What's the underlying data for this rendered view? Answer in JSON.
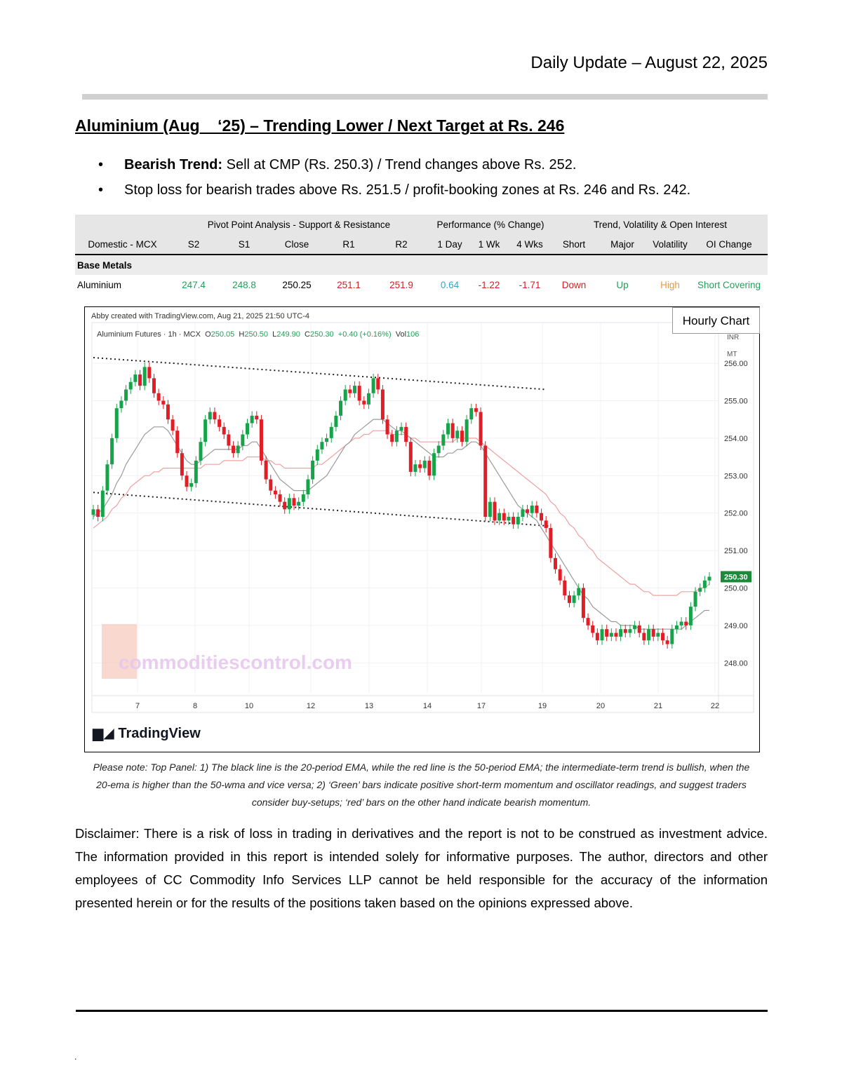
{
  "header": {
    "date_line": "Daily Update – August 22, 2025"
  },
  "title": "Aluminium (Aug    ‘25) – Trending Lower / Next Target at Rs. 246",
  "bullets": [
    {
      "bold": "Bearish Trend:",
      "text": " Sell at CMP (Rs. 250.3) / Trend changes above Rs. 252."
    },
    {
      "bold": "",
      "text": "Stop loss for bearish trades above Rs. 251.5 / profit-booking zones at Rs. 246 and Rs. 242."
    }
  ],
  "table": {
    "group_headers": [
      "Pivot Point Analysis - Support & Resistance",
      "Performance (% Change)",
      "Trend, Volatility & Open Interest"
    ],
    "columns": [
      "Domestic - MCX",
      "S2",
      "S1",
      "Close",
      "R1",
      "R2",
      "1 Day",
      "1 Wk",
      "4 Wks",
      "Short",
      "Major",
      "Volatility",
      "OI Change"
    ],
    "category": "Base Metals",
    "row": [
      "Aluminium",
      "247.4",
      "248.8",
      "250.25",
      "251.1",
      "251.9",
      "0.64",
      "-1.22",
      "-1.71",
      "Down",
      "Up",
      "High",
      "Short Covering"
    ],
    "colors": {
      "green": "#21a05a",
      "red": "#d11f24",
      "teal": "#2aa8c8",
      "orange": "#e39a4b"
    }
  },
  "chart_data": {
    "type": "candlestick",
    "caption": "Abby created with TradingView.com, Aug 21, 2025 21:50 UTC-4",
    "legend": {
      "symbol": "Aluminium Futures · 1h · MCX",
      "o_label": "O",
      "o": "250.05",
      "h_label": "H",
      "h": "250.50",
      "l_label": "L",
      "l": "249.90",
      "c_label": "C",
      "c": "250.30",
      "change": "+0.40 (+0.16%)",
      "vol_label": "Vol",
      "vol": "106"
    },
    "badge": "Hourly Chart",
    "axis_unit": [
      "INR",
      "MT"
    ],
    "y_ticks": [
      "256.00",
      "255.00",
      "254.00",
      "253.00",
      "252.00",
      "251.00",
      "250.00",
      "249.00",
      "248.00"
    ],
    "ylim": [
      247.2,
      256.6
    ],
    "x_ticks": [
      "7",
      "8",
      "10",
      "12",
      "13",
      "14",
      "17",
      "19",
      "20",
      "21",
      "22"
    ],
    "last_price": "250.30",
    "watermark": "commoditiescontrol.com",
    "brand": "TradingView",
    "closes": [
      252.1,
      251.9,
      252.6,
      253.3,
      254.0,
      254.8,
      255.0,
      255.3,
      255.5,
      255.7,
      255.4,
      255.9,
      255.6,
      255.2,
      255.0,
      254.9,
      254.5,
      254.2,
      253.6,
      253.0,
      252.7,
      252.8,
      253.4,
      253.9,
      254.5,
      254.7,
      254.5,
      254.3,
      254.1,
      253.8,
      253.6,
      253.8,
      254.1,
      254.4,
      254.6,
      254.5,
      253.4,
      252.9,
      252.6,
      252.5,
      252.3,
      252.1,
      252.4,
      252.2,
      252.3,
      252.5,
      252.9,
      253.4,
      253.7,
      253.9,
      254.0,
      254.3,
      254.6,
      255.0,
      255.3,
      255.2,
      255.4,
      255.0,
      254.9,
      255.2,
      255.6,
      255.3,
      254.5,
      254.1,
      253.9,
      254.2,
      254.3,
      253.9,
      253.1,
      253.3,
      253.2,
      253.4,
      253.0,
      253.6,
      253.8,
      254.1,
      254.4,
      254.0,
      254.2,
      253.9,
      254.5,
      254.8,
      254.7,
      253.8,
      251.9,
      252.3,
      251.8,
      252.0,
      251.8,
      251.9,
      251.7,
      251.9,
      252.1,
      252.0,
      252.2,
      252.0,
      251.8,
      251.6,
      250.8,
      250.5,
      250.2,
      249.8,
      249.6,
      249.8,
      250.0,
      249.2,
      249.0,
      248.8,
      248.6,
      248.9,
      248.7,
      248.8,
      248.7,
      248.9,
      248.8,
      248.9,
      249.0,
      248.8,
      248.6,
      248.9,
      248.7,
      248.8,
      248.6,
      248.5,
      248.9,
      249.0,
      249.1,
      249.0,
      249.5,
      249.9,
      250.0,
      250.2,
      250.3
    ],
    "ema20": [
      251.9,
      252.0,
      252.1,
      252.3,
      252.5,
      252.8,
      253.0,
      253.3,
      253.5,
      253.7,
      253.9,
      254.1,
      254.2,
      254.3,
      254.3,
      254.3,
      254.2,
      254.0,
      253.8,
      253.6,
      253.4,
      253.3,
      253.3,
      253.4,
      253.5,
      253.6,
      253.7,
      253.7,
      253.7,
      253.7,
      253.7,
      253.7,
      253.8,
      253.8,
      253.9,
      253.9,
      253.7,
      253.5,
      253.3,
      253.1,
      252.9,
      252.8,
      252.7,
      252.6,
      252.6,
      252.6,
      252.6,
      252.7,
      252.8,
      252.9,
      253.0,
      253.2,
      253.4,
      253.6,
      253.8,
      253.9,
      254.1,
      254.2,
      254.3,
      254.4,
      254.5,
      254.5,
      254.5,
      254.4,
      254.3,
      254.2,
      254.2,
      254.1,
      254.0,
      253.9,
      253.8,
      253.7,
      253.6,
      253.5,
      253.5,
      253.5,
      253.6,
      253.6,
      253.7,
      253.7,
      253.8,
      253.9,
      253.9,
      253.8,
      253.6,
      253.4,
      253.2,
      253.0,
      252.8,
      252.6,
      252.4,
      252.2,
      252.1,
      252.0,
      251.9,
      251.8,
      251.6,
      251.4,
      251.2,
      251.0,
      250.8,
      250.6,
      250.4,
      250.2,
      250.0,
      249.8,
      249.7,
      249.5,
      249.4,
      249.3,
      249.2,
      249.1,
      249.1,
      249.0,
      249.0,
      249.0,
      249.0,
      248.9,
      248.9,
      248.9,
      248.9,
      248.9,
      248.9,
      248.9,
      248.9,
      248.9,
      248.9,
      249.0,
      249.1,
      249.2,
      249.3,
      249.4,
      249.4
    ],
    "ema50": [
      251.6,
      251.7,
      251.8,
      251.9,
      252.1,
      252.2,
      252.4,
      252.5,
      252.7,
      252.8,
      252.9,
      253.0,
      253.0,
      253.1,
      253.1,
      253.2,
      253.2,
      253.2,
      253.2,
      253.2,
      253.2,
      253.2,
      253.2,
      253.2,
      253.3,
      253.3,
      253.3,
      253.3,
      253.4,
      253.4,
      253.4,
      253.4,
      253.4,
      253.5,
      253.5,
      253.5,
      253.5,
      253.4,
      253.4,
      253.3,
      253.3,
      253.2,
      253.2,
      253.2,
      253.2,
      253.2,
      253.2,
      253.2,
      253.3,
      253.3,
      253.4,
      253.5,
      253.6,
      253.7,
      253.8,
      253.9,
      254.0,
      254.0,
      254.1,
      254.1,
      254.2,
      254.2,
      254.2,
      254.2,
      254.1,
      254.1,
      254.1,
      254.1,
      254.0,
      254.0,
      253.9,
      253.9,
      253.9,
      253.9,
      253.9,
      253.9,
      253.9,
      253.9,
      254.0,
      254.0,
      254.0,
      254.0,
      254.0,
      253.9,
      253.8,
      253.7,
      253.6,
      253.5,
      253.4,
      253.3,
      253.2,
      253.1,
      253.0,
      252.9,
      252.8,
      252.7,
      252.6,
      252.5,
      252.3,
      252.2,
      252.0,
      251.9,
      251.7,
      251.6,
      251.4,
      251.3,
      251.1,
      251.0,
      250.8,
      250.7,
      250.6,
      250.5,
      250.4,
      250.3,
      250.2,
      250.1,
      250.1,
      250.0,
      249.9,
      249.9,
      249.8,
      249.8,
      249.8,
      249.8,
      249.8,
      249.8,
      249.9,
      249.9,
      249.9,
      249.9,
      250.0,
      250.0,
      250.1
    ],
    "trendlines": [
      {
        "from": [
          0,
          256.15
        ],
        "to": [
          97,
          255.3
        ]
      },
      {
        "from": [
          0,
          252.55
        ],
        "to": [
          98,
          251.65
        ]
      }
    ]
  },
  "note": {
    "line1": "Please note: Top Panel: 1) The black line is the 20-period EMA, while the red line is the 50-period EMA; the intermediate-term trend is bullish, when the",
    "line2": "20-ema is higher than the 50-wma and vice versa; 2)    ‘Green’    bars indicate positive short-term momentum and oscillator readings, and suggest traders",
    "line3": "consider buy-setups;    ‘red’    bars on the other hand indicate bearish momentum."
  },
  "disclaimer": "Disclaimer: There is a risk of loss in trading in derivatives and the report is not to be construed as investment advice. The information provided in this report is intended solely for informative purposes. The author, directors and other employees of CC Commodity Info Services LLP cannot be held responsible for the accuracy of the information presented herein or for the results of the positions taken based on the opinions expressed above.",
  "footer_mark": "."
}
